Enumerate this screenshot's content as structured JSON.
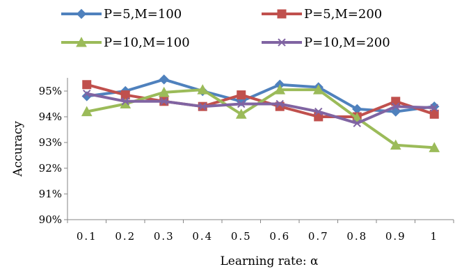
{
  "chart_data": {
    "type": "line",
    "xlabel": "Learning rate: α",
    "ylabel": "Accuracy",
    "categories": [
      "0.1",
      "0.2",
      "0.3",
      "0.4",
      "0.5",
      "0.6",
      "0.7",
      "0.8",
      "0.9",
      "1"
    ],
    "ylim": [
      90,
      95.5
    ],
    "yticks": [
      {
        "value": 90,
        "label": "90%"
      },
      {
        "value": 91,
        "label": "91%"
      },
      {
        "value": 92,
        "label": "92%"
      },
      {
        "value": 93,
        "label": "93%"
      },
      {
        "value": 94,
        "label": "94%"
      },
      {
        "value": 95,
        "label": "95%"
      }
    ],
    "grid": false,
    "legend": "top",
    "series": [
      {
        "name": "P=5,M=100",
        "color": "#4F81BD",
        "marker": "diamond",
        "values": [
          94.8,
          95.0,
          95.45,
          95.0,
          94.6,
          95.25,
          95.15,
          94.3,
          94.2,
          94.4
        ]
      },
      {
        "name": "P=5,M=200",
        "color": "#C0504D",
        "marker": "square",
        "values": [
          95.25,
          94.85,
          94.6,
          94.4,
          94.85,
          94.4,
          94.0,
          94.0,
          94.6,
          94.1
        ]
      },
      {
        "name": "P=10,M=100",
        "color": "#9BBB59",
        "marker": "triangle",
        "values": [
          94.2,
          94.5,
          94.95,
          95.05,
          94.1,
          95.05,
          95.05,
          93.95,
          92.9,
          92.8
        ]
      },
      {
        "name": "P=10,M=200",
        "color": "#8064A2",
        "marker": "x",
        "values": [
          94.9,
          94.6,
          94.6,
          94.4,
          94.5,
          94.5,
          94.2,
          93.75,
          94.4,
          94.35
        ]
      }
    ]
  }
}
